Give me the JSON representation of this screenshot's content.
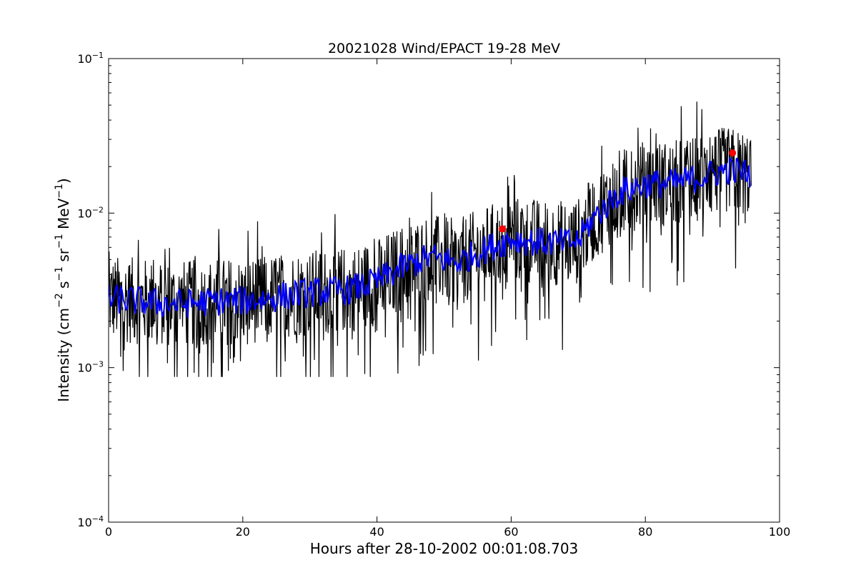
{
  "chart_data": {
    "type": "line",
    "title": "20021028 Wind/EPACT 19-28 MeV",
    "xlabel": "Hours after 28-10-2002 00:01:08.703",
    "ylabel": {
      "prefix": "Intensity (cm",
      "exp1": "−2",
      "mid1": " s",
      "exp2": "−1",
      "mid2": " sr",
      "exp3": "−1",
      "mid3": " MeV",
      "exp4": "−1",
      "suffix": ")"
    },
    "xlim": [
      0,
      100
    ],
    "ylim": [
      0.0001,
      0.1
    ],
    "yscale": "log",
    "grid": false,
    "x_ticks": [
      "0",
      "20",
      "40",
      "60",
      "80",
      "100"
    ],
    "y_ticks": [
      {
        "base": "10",
        "exp": "−4",
        "value": 0.0001
      },
      {
        "base": "10",
        "exp": "−3",
        "value": 0.001
      },
      {
        "base": "10",
        "exp": "−2",
        "value": 0.01
      },
      {
        "base": "10",
        "exp": "−1",
        "value": 0.1
      }
    ],
    "series": [
      {
        "color": "#000000",
        "style": "raw, noisy",
        "x": [
          0,
          4,
          8,
          12,
          16,
          20,
          24,
          28,
          32,
          36,
          40,
          44,
          48,
          52,
          56,
          60,
          64,
          68,
          70,
          72,
          74,
          76,
          78,
          80,
          84,
          88,
          92,
          95.8
        ],
        "y": [
          0.0028,
          0.0027,
          0.0026,
          0.0026,
          0.0027,
          0.0027,
          0.0028,
          0.003,
          0.0031,
          0.0032,
          0.0036,
          0.0045,
          0.0052,
          0.0048,
          0.0058,
          0.0068,
          0.0065,
          0.0064,
          0.0066,
          0.009,
          0.011,
          0.0135,
          0.0145,
          0.0155,
          0.0155,
          0.017,
          0.019,
          0.018
        ]
      },
      {
        "color": "#0000ff",
        "style": "smoothed",
        "x": [
          0,
          4,
          8,
          12,
          16,
          20,
          24,
          28,
          32,
          36,
          40,
          44,
          48,
          52,
          56,
          60,
          64,
          68,
          70,
          72,
          74,
          76,
          78,
          80,
          84,
          88,
          92,
          95.8
        ],
        "y": [
          0.0028,
          0.0027,
          0.0026,
          0.0026,
          0.0027,
          0.0027,
          0.0028,
          0.003,
          0.0031,
          0.0032,
          0.0036,
          0.0045,
          0.0052,
          0.0048,
          0.0058,
          0.0068,
          0.0065,
          0.0064,
          0.0066,
          0.009,
          0.011,
          0.0135,
          0.0145,
          0.0155,
          0.0155,
          0.017,
          0.019,
          0.018
        ]
      }
    ],
    "markers": [
      {
        "x": 58.7,
        "y": 0.0079,
        "color": "#ff0000"
      },
      {
        "x": 93.0,
        "y": 0.0245,
        "color": "#ff0000"
      }
    ]
  }
}
